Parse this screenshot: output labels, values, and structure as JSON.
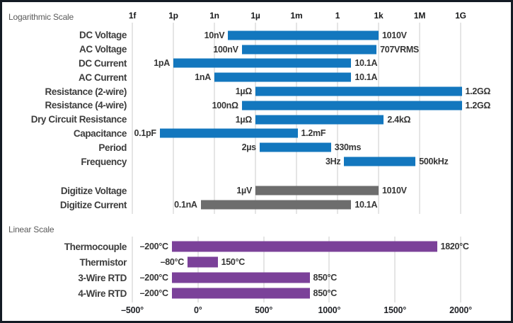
{
  "frame": {
    "border_color": "#141b24",
    "background": "#ffffff"
  },
  "chart_data": {
    "type": "bar",
    "orientation": "horizontal-range",
    "grid": true,
    "colors": {
      "log": "#1377be",
      "digitize": "#6d6d6d",
      "linear": "#7b4199",
      "grid": "#cbcbcb"
    },
    "sections": [
      {
        "id": "log",
        "label": "Logarithmic Scale",
        "scale": "log10-exponent",
        "bar_color_key": "log",
        "axis": {
          "position": "top",
          "min": -15,
          "max": 9,
          "ticks": [
            "1f",
            "1p",
            "1n",
            "1µ",
            "1m",
            "1",
            "1k",
            "1M",
            "1G"
          ]
        },
        "rows": [
          {
            "label": "DC Voltage",
            "start_label": "10nV",
            "end_label": "1010V",
            "start": -8,
            "end": 3.0
          },
          {
            "label": "AC Voltage",
            "start_label": "100nV",
            "end_label": "707VRMS",
            "start": -7,
            "end": 2.85
          },
          {
            "label": "DC Current",
            "start_label": "1pA",
            "end_label": "10.1A",
            "start": -12,
            "end": 1.0
          },
          {
            "label": "AC Current",
            "start_label": "1nA",
            "end_label": "10.1A",
            "start": -9,
            "end": 1.0
          },
          {
            "label": "Resistance (2-wire)",
            "start_label": "1µΩ",
            "end_label": "1.2GΩ",
            "start": -6,
            "end": 9.08
          },
          {
            "label": "Resistance (4-wire)",
            "start_label": "100nΩ",
            "end_label": "1.2GΩ",
            "start": -7,
            "end": 9.08
          },
          {
            "label": "Dry Circuit Resistance",
            "start_label": "1µΩ",
            "end_label": "2.4kΩ",
            "start": -6,
            "end": 3.38
          },
          {
            "label": "Capacitance",
            "start_label": "0.1pF",
            "end_label": "1.2mF",
            "start": -13,
            "end": -2.92
          },
          {
            "label": "Period",
            "start_label": "2µs",
            "end_label": "330ms",
            "start": -5.7,
            "end": -0.48
          },
          {
            "label": "Frequency",
            "start_label": "3Hz",
            "end_label": "500kHz",
            "start": 0.48,
            "end": 5.7
          }
        ]
      },
      {
        "id": "digitize",
        "label": "",
        "scale": "log10-exponent",
        "bar_color_key": "digitize",
        "axis": {
          "position": "none",
          "min": -15,
          "max": 9,
          "ticks": []
        },
        "rows": [
          {
            "label": "Digitize Voltage",
            "start_label": "1µV",
            "end_label": "1010V",
            "start": -6,
            "end": 3.0
          },
          {
            "label": "Digitize Current",
            "start_label": "0.1nA",
            "end_label": "10.1A",
            "start": -10,
            "end": 1.0
          }
        ]
      },
      {
        "id": "linear",
        "label": "Linear Scale",
        "scale": "linear",
        "bar_color_key": "linear",
        "axis": {
          "position": "bottom",
          "min": -500,
          "max": 2000,
          "ticks": [
            "–500°",
            "0°",
            "500°",
            "1000°",
            "1500°",
            "2000°"
          ]
        },
        "rows": [
          {
            "label": "Thermocouple",
            "start_label": "–200°C",
            "end_label": "1820°C",
            "start": -200,
            "end": 1820
          },
          {
            "label": "Thermistor",
            "start_label": "–80°C",
            "end_label": "150°C",
            "start": -80,
            "end": 150
          },
          {
            "label": "3-Wire RTD",
            "start_label": "–200°C",
            "end_label": "850°C",
            "start": -200,
            "end": 850
          },
          {
            "label": "4-Wire RTD",
            "start_label": "–200°C",
            "end_label": "850°C",
            "start": -200,
            "end": 850
          }
        ]
      }
    ]
  }
}
